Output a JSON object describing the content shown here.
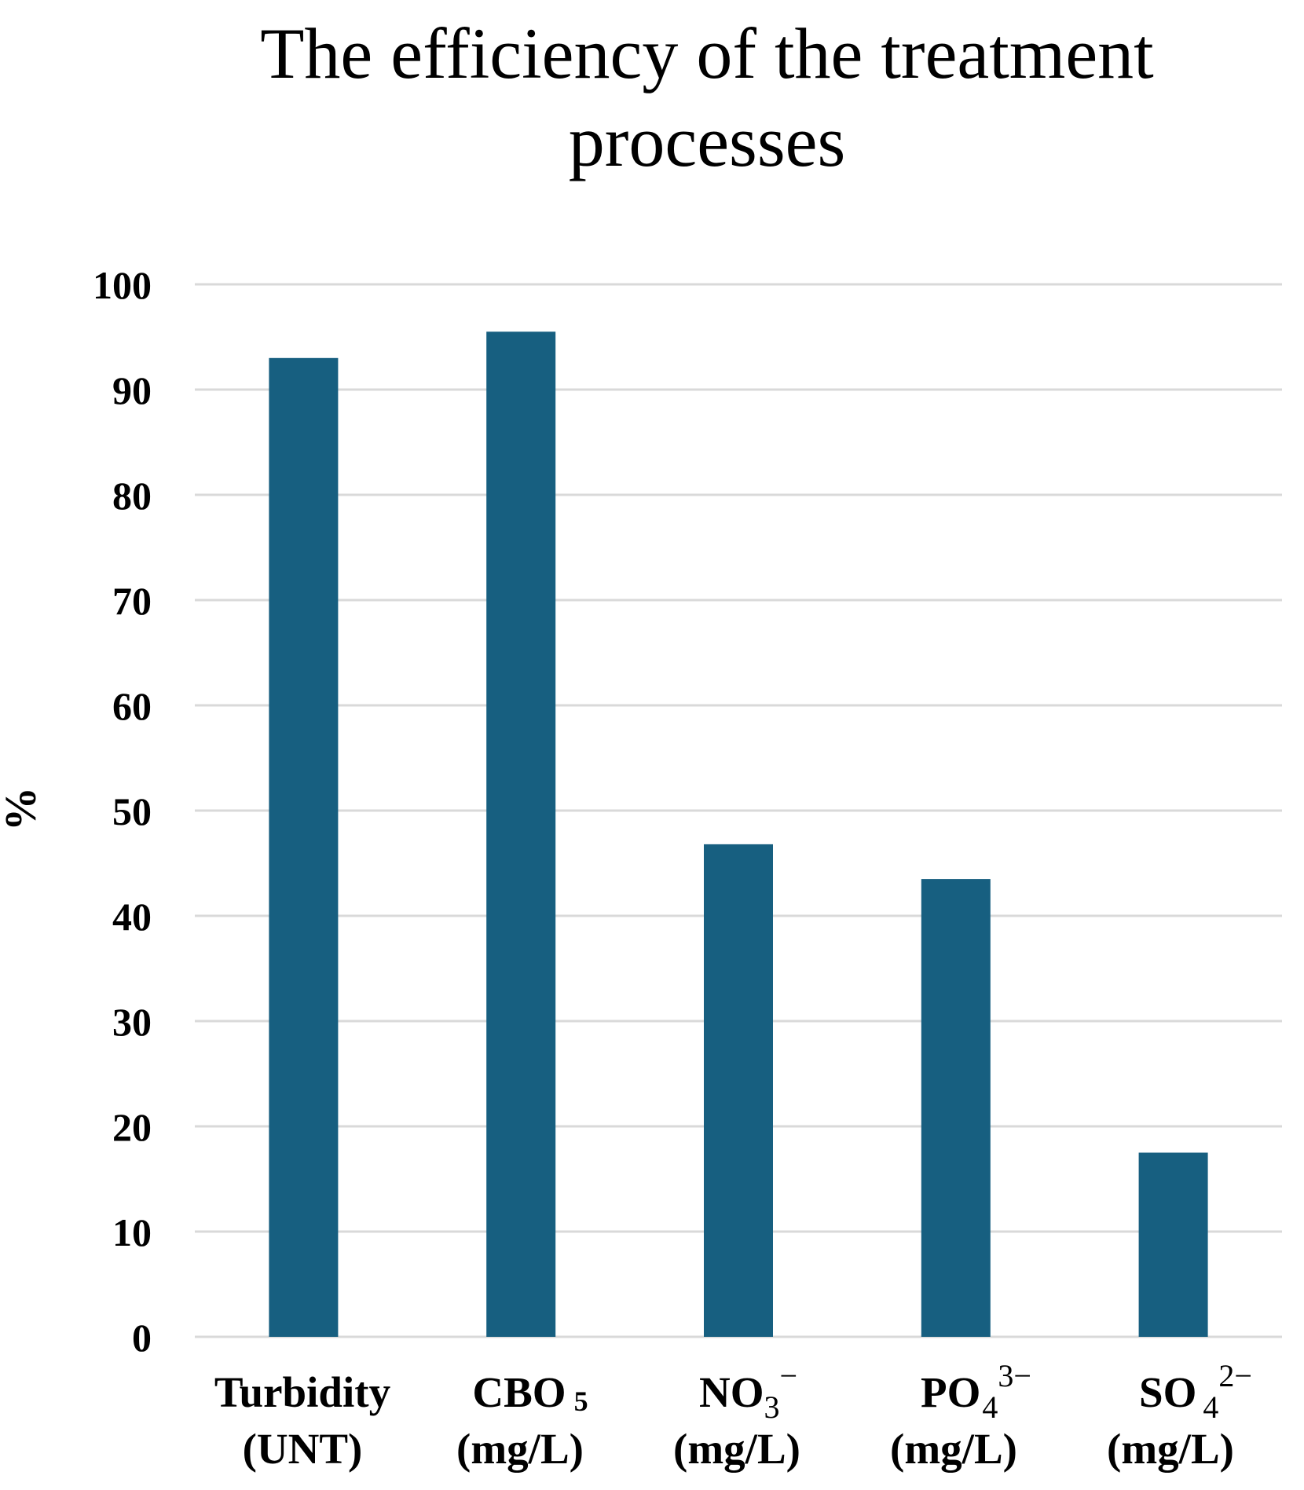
{
  "chart_data": {
    "type": "bar",
    "title_lines": [
      "The efficiency of the treatment",
      "processes"
    ],
    "ylabel": "%",
    "ylim": [
      0,
      100
    ],
    "yticks": [
      0,
      10,
      20,
      30,
      40,
      50,
      60,
      70,
      80,
      90,
      100
    ],
    "grid": true,
    "bar_color": "#175F80",
    "grid_color": "#D9D9D9",
    "categories": [
      {
        "line1": "Turbidity",
        "line2": "(UNT)",
        "value": 93
      },
      {
        "line1_main": "CBO",
        "line1_sub": "5",
        "line2": "(mg/L)",
        "value": 95.5
      },
      {
        "line1_main": "NO",
        "line1_sub": "3",
        "line1_sup": "−",
        "line2": "(mg/L)",
        "value": 46.8
      },
      {
        "line1_main": "PO",
        "line1_sub": "4",
        "line1_sup": "3−",
        "line2": "(mg/L)",
        "value": 43.5
      },
      {
        "line1_main": "SO",
        "line1_sub": "4",
        "line1_sup": "2−",
        "line2": "(mg/L)",
        "value": 17.5
      }
    ]
  }
}
